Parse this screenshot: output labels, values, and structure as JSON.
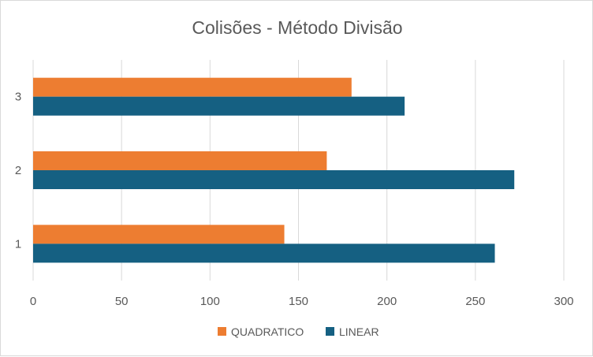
{
  "chart_data": {
    "type": "bar",
    "orientation": "horizontal",
    "title": "Colisões - Método Divisão",
    "categories": [
      "1",
      "2",
      "3"
    ],
    "series": [
      {
        "name": "QUADRATICO",
        "color": "#ED7D31",
        "values": [
          142,
          166,
          180
        ]
      },
      {
        "name": "LINEAR",
        "color": "#156082",
        "values": [
          261,
          272,
          210
        ]
      }
    ],
    "xlim": [
      0,
      300
    ],
    "xticks": [
      0,
      50,
      100,
      150,
      200,
      250,
      300
    ],
    "grid": true,
    "legend_position": "bottom"
  }
}
